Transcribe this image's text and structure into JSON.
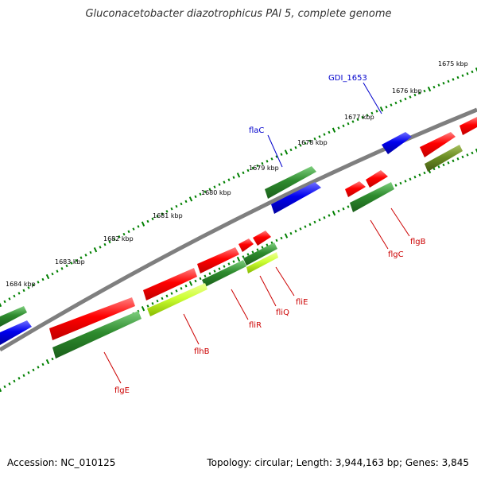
{
  "title": "Gluconacetobacter diazotrophicus PAl 5, complete genome",
  "footer": {
    "accession": "Accession: NC_010125",
    "topology": "Topology: circular; Length: 3,944,163 bp; Genes: 3,845"
  },
  "scale_labels": [
    "1675 kbp",
    "1676 kbp",
    "1677 kbp",
    "1678 kbp",
    "1679 kbp",
    "1680 kbp",
    "1681 kbp",
    "1682 kbp",
    "1683 kbp",
    "1684 kbp"
  ],
  "gene_labels": [
    {
      "id": "GDI_1653",
      "text": "GDI_1653",
      "color": "#0000cc"
    },
    {
      "id": "flaC",
      "text": "flaC",
      "color": "#0000cc"
    },
    {
      "id": "flgB",
      "text": "flgB",
      "color": "#cc0000"
    },
    {
      "id": "flgC",
      "text": "flgC",
      "color": "#cc0000"
    },
    {
      "id": "fliE",
      "text": "fliE",
      "color": "#cc0000"
    },
    {
      "id": "fliQ",
      "text": "fliQ",
      "color": "#cc0000"
    },
    {
      "id": "fliR",
      "text": "fliR",
      "color": "#cc0000"
    },
    {
      "id": "flhB",
      "text": "flhB",
      "color": "#cc0000"
    },
    {
      "id": "flgE",
      "text": "flgE",
      "color": "#cc0000"
    }
  ],
  "colors": {
    "backbone": "#7f7f7f",
    "forward_cds": "#ff0000",
    "forward_cds_light": "#ff7a7a",
    "blue_cds": "#0000ee",
    "blue_cds_light": "#6f6fff",
    "green_cds": "#2e8b2e",
    "green_cds_light": "#6fcf6f",
    "lime_cds": "#ccff33",
    "olive_cds": "#6b8e23",
    "tick_green": "#008000"
  }
}
